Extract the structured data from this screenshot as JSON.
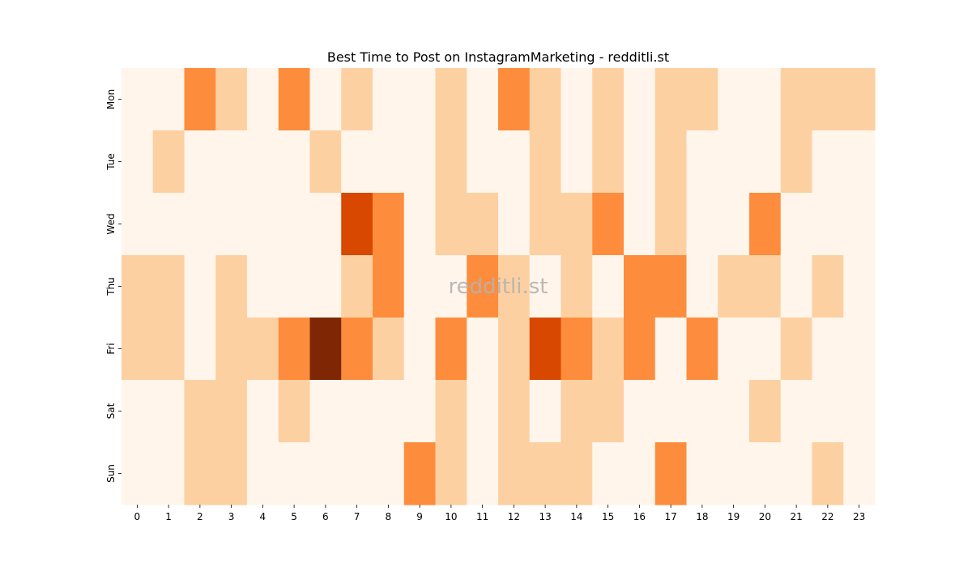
{
  "chart_data": {
    "type": "heatmap",
    "title": "Best Time to Post on InstagramMarketing - redditli.st",
    "watermark": "redditli.st",
    "xlabel": "",
    "ylabel": "",
    "x_categories": [
      "0",
      "1",
      "2",
      "3",
      "4",
      "5",
      "6",
      "7",
      "8",
      "9",
      "10",
      "11",
      "12",
      "13",
      "14",
      "15",
      "16",
      "17",
      "18",
      "19",
      "20",
      "21",
      "22",
      "23"
    ],
    "y_categories": [
      "Mon",
      "Tue",
      "Wed",
      "Thu",
      "Fri",
      "Sat",
      "Sun"
    ],
    "colormap": "Oranges",
    "colorbar": false,
    "level_colors": [
      "#fff5eb",
      "#fdd0a2",
      "#fd8d3c",
      "#d94801",
      "#7f2704"
    ],
    "values": [
      [
        0,
        0,
        2,
        1,
        0,
        2,
        0,
        1,
        0,
        0,
        1,
        0,
        2,
        1,
        0,
        1,
        0,
        1,
        1,
        0,
        0,
        1,
        1,
        1
      ],
      [
        0,
        1,
        0,
        0,
        0,
        0,
        1,
        0,
        0,
        0,
        1,
        0,
        0,
        1,
        0,
        1,
        0,
        1,
        0,
        0,
        0,
        1,
        0,
        0
      ],
      [
        0,
        0,
        0,
        0,
        0,
        0,
        0,
        3,
        2,
        0,
        1,
        1,
        0,
        1,
        1,
        2,
        0,
        1,
        0,
        0,
        2,
        0,
        0,
        0
      ],
      [
        1,
        1,
        0,
        1,
        0,
        0,
        0,
        1,
        2,
        0,
        0,
        2,
        1,
        0,
        1,
        0,
        2,
        2,
        0,
        1,
        1,
        0,
        1,
        0
      ],
      [
        1,
        1,
        0,
        1,
        1,
        2,
        4,
        2,
        1,
        0,
        2,
        0,
        1,
        3,
        2,
        1,
        2,
        0,
        2,
        0,
        0,
        1,
        0,
        0
      ],
      [
        0,
        0,
        1,
        1,
        0,
        1,
        0,
        0,
        0,
        0,
        1,
        0,
        1,
        0,
        1,
        1,
        0,
        0,
        0,
        0,
        1,
        0,
        0,
        0
      ],
      [
        0,
        0,
        1,
        1,
        0,
        0,
        0,
        0,
        0,
        2,
        1,
        0,
        1,
        1,
        1,
        0,
        0,
        2,
        0,
        0,
        0,
        0,
        1,
        0
      ]
    ]
  }
}
